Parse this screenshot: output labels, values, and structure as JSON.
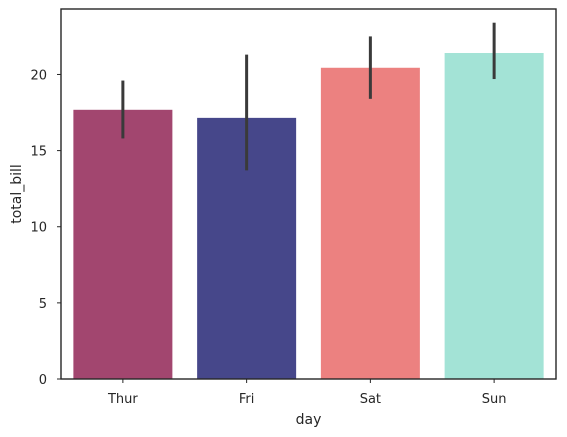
{
  "chart_data": {
    "type": "bar",
    "title": "",
    "xlabel": "day",
    "ylabel": "total_bill",
    "categories": [
      "Thur",
      "Fri",
      "Sat",
      "Sun"
    ],
    "values": [
      17.68,
      17.15,
      20.44,
      21.41
    ],
    "error_low": [
      15.8,
      13.7,
      18.4,
      19.7
    ],
    "error_high": [
      19.6,
      21.3,
      22.5,
      23.4
    ],
    "colors": [
      "#a2466f",
      "#46478a",
      "#ec8180",
      "#a3e3d6"
    ],
    "error_color": "#3a3a3a",
    "ylim": [
      0,
      24.3
    ],
    "yticks": [
      0,
      5,
      10,
      15,
      20
    ],
    "ytick_labels": [
      "0",
      "5",
      "10",
      "15",
      "20"
    ],
    "grid": false,
    "legend": "none"
  }
}
